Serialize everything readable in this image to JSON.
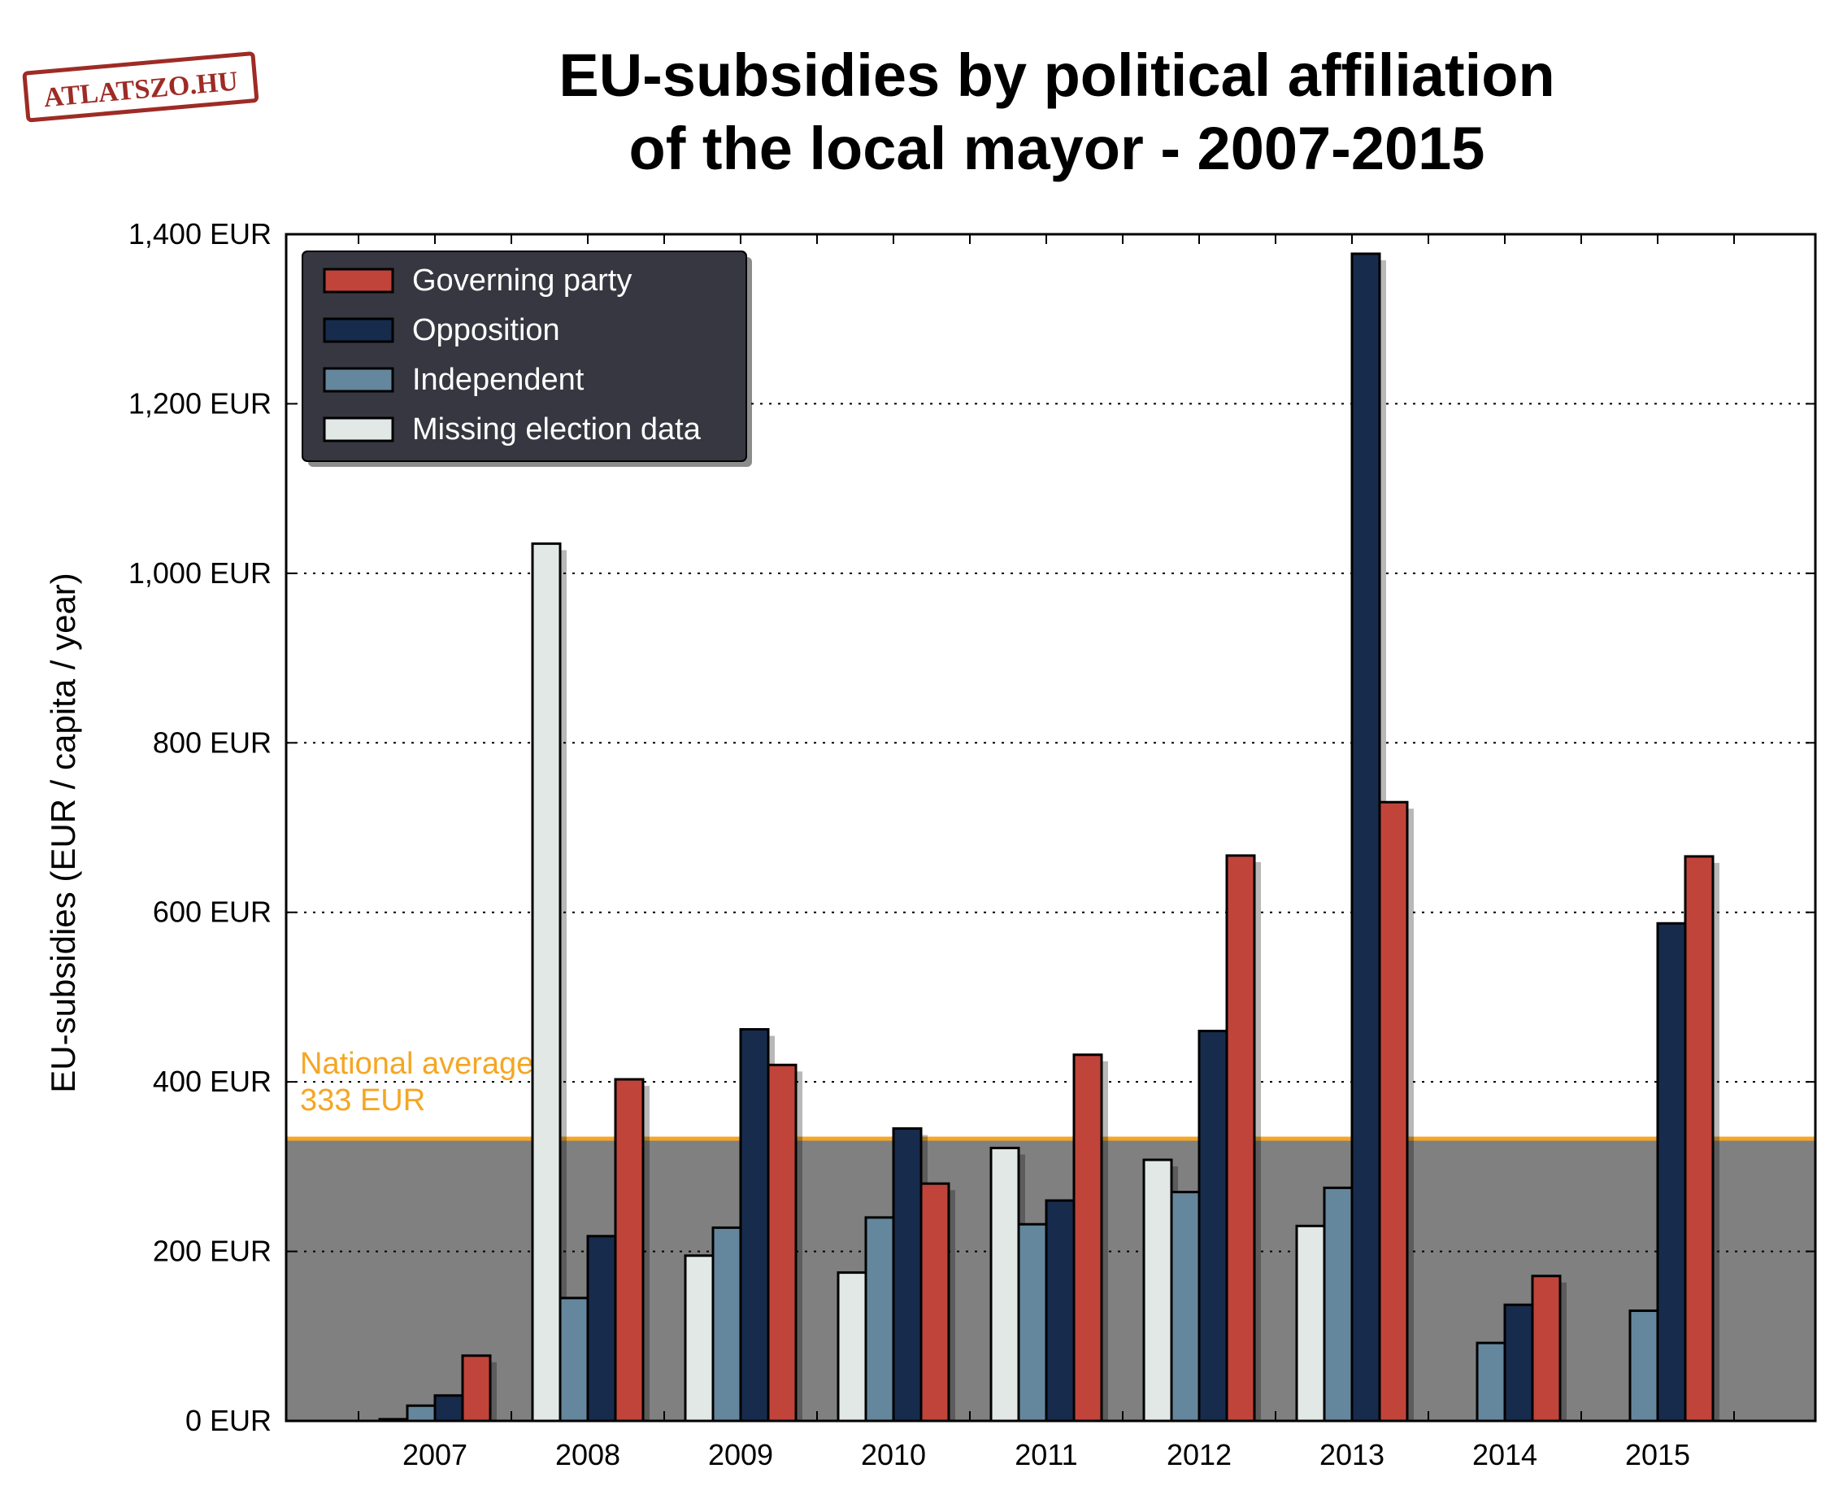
{
  "logo": {
    "text": "ATLATSZO.HU",
    "color": "#9e2b25"
  },
  "chart_data": {
    "type": "bar",
    "title": "EU-subsidies by political affiliation\nof the local mayor - 2007-2015",
    "title_lines": [
      "EU-subsidies by political affiliation",
      "of the local mayor - 2007-2015"
    ],
    "xlabel": "",
    "ylabel": "EU-subsidies (EUR / capita / year)",
    "ylim": [
      0,
      1400
    ],
    "yticks": [
      0,
      200,
      400,
      600,
      800,
      1000,
      1200,
      1400
    ],
    "ytick_labels": [
      "0 EUR",
      "200 EUR",
      "400 EUR",
      "600 EUR",
      "800 EUR",
      "1,000 EUR",
      "1,200 EUR",
      "1,400 EUR"
    ],
    "categories": [
      "2007",
      "2008",
      "2009",
      "2010",
      "2011",
      "2012",
      "2013",
      "2014",
      "2015"
    ],
    "grid": "horizontal dotted",
    "legend_position": "top-left",
    "series": [
      {
        "name": "Missing election data",
        "color": "#e2e8e5",
        "values": [
          2,
          1035,
          195,
          175,
          322,
          308,
          230,
          null,
          null
        ]
      },
      {
        "name": "Independent",
        "color": "#65879d",
        "values": [
          18,
          145,
          228,
          240,
          232,
          270,
          275,
          92,
          130
        ]
      },
      {
        "name": "Opposition",
        "color": "#172b4d",
        "values": [
          30,
          218,
          462,
          345,
          260,
          460,
          1377,
          137,
          587
        ]
      },
      {
        "name": "Governing party",
        "color": "#c0443a",
        "values": [
          77,
          403,
          420,
          280,
          432,
          667,
          730,
          171,
          666
        ]
      }
    ],
    "legend_order": [
      "Governing party",
      "Opposition",
      "Independent",
      "Missing election data"
    ],
    "reference_line": {
      "value": 333,
      "label_lines": [
        "National average:",
        "333 EUR"
      ],
      "color": "#f5a623",
      "fill": "#808080"
    }
  }
}
